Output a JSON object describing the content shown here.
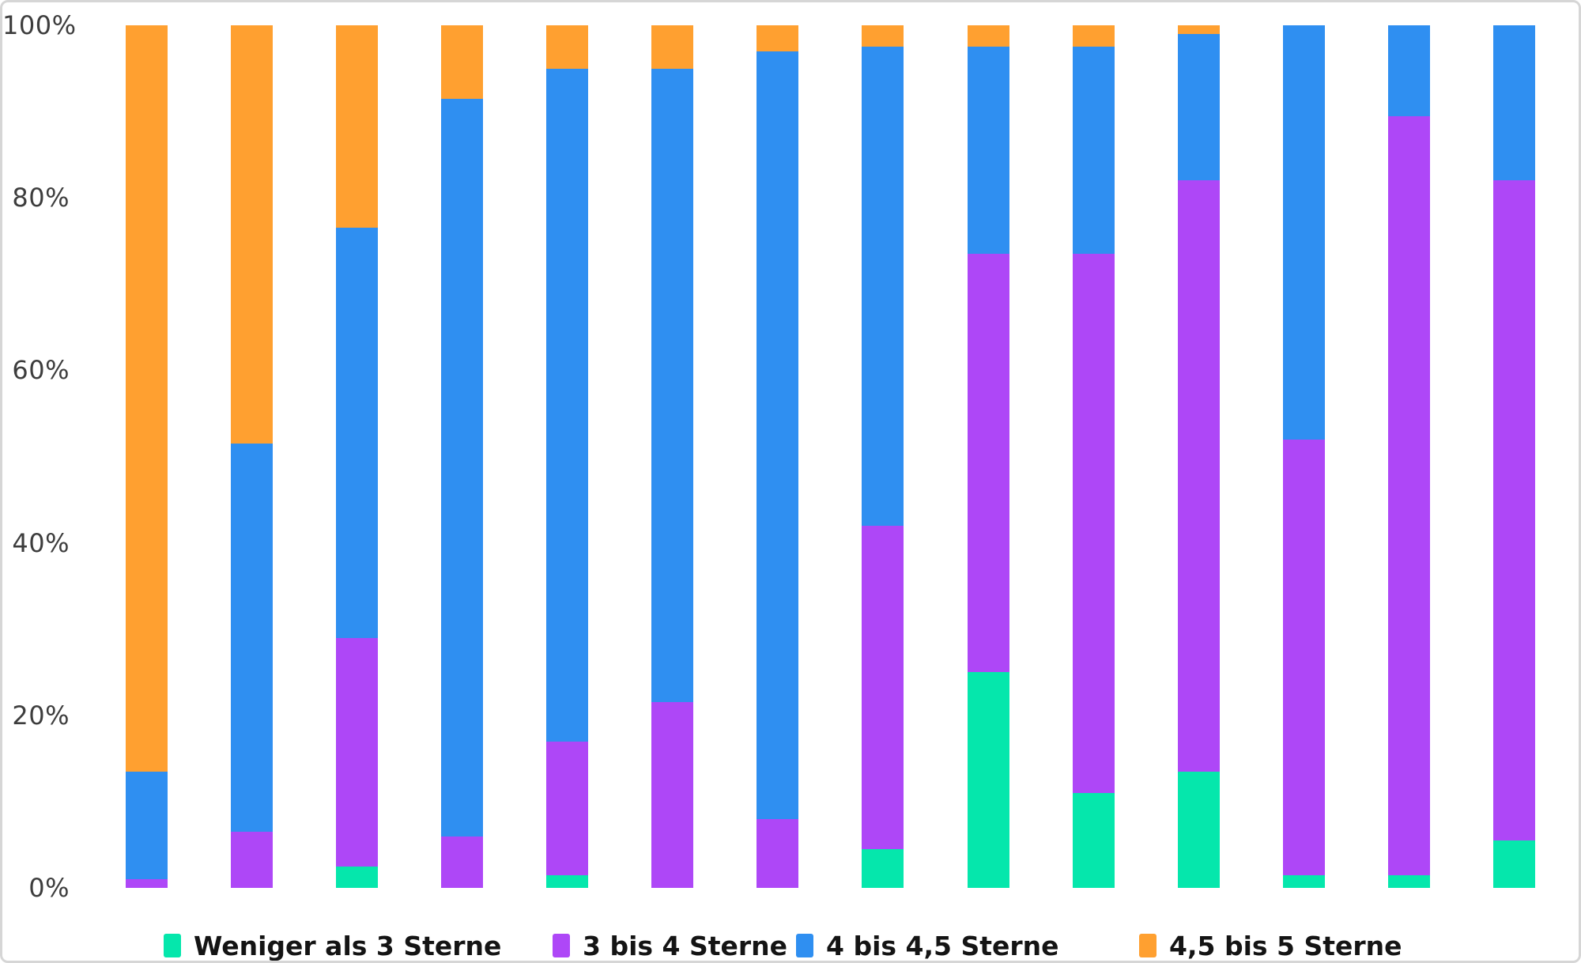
{
  "chart_data": {
    "type": "bar",
    "subtype": "stacked-100-percent-vertical",
    "title": "",
    "bar_count": 14,
    "categories": [
      "",
      "",
      "",
      "",
      "",
      "",
      "",
      "",
      "",
      "",
      "",
      "",
      "",
      ""
    ],
    "x_axis_labels_visible": false,
    "grid": false,
    "legend_position": "bottom",
    "ylim": [
      0,
      100
    ],
    "y_ticks": [
      {
        "label": "100%",
        "value": 100
      },
      {
        "label": "80%",
        "value": 80
      },
      {
        "label": "60%",
        "value": 60
      },
      {
        "label": "40%",
        "value": 40
      },
      {
        "label": "20%",
        "value": 20
      },
      {
        "label": "0%",
        "value": 0
      }
    ],
    "series": [
      {
        "name": "Weniger als 3 Sterne",
        "color": "#05E7AC",
        "values": [
          0,
          0,
          2.5,
          0,
          1.5,
          0,
          0,
          4.5,
          25,
          11,
          13.5,
          1.5,
          1.5,
          5.5
        ]
      },
      {
        "name": "3 bis 4 Sterne",
        "color": "#AE47F7",
        "values": [
          1,
          6.5,
          26.5,
          6,
          15.5,
          21.5,
          8,
          37.5,
          48.5,
          62.5,
          68.5,
          50.5,
          88,
          76.5
        ]
      },
      {
        "name": "4 bis 4,5 Sterne",
        "color": "#2F8FF1",
        "values": [
          12.5,
          45,
          47.5,
          85.5,
          78,
          73.5,
          89,
          55.5,
          24,
          24,
          17,
          48,
          10.5,
          18
        ]
      },
      {
        "name": "4,5 bis 5 Sterne",
        "color": "#FFA030",
        "values": [
          86.5,
          48.5,
          23.5,
          8.5,
          5,
          5,
          3,
          2.5,
          2.5,
          2.5,
          1,
          0,
          0,
          0
        ]
      }
    ],
    "colors": {
      "less_than_3_stars": "#05E7AC",
      "3_to_4_stars": "#AE47F7",
      "4_to_4_5_stars": "#2F8FF1",
      "4_5_to_5_stars": "#FFA030",
      "axis_text": "#3d3d3d",
      "legend_text": "#141414",
      "frame_border": "#d6d6d6",
      "background": "#ffffff"
    }
  }
}
